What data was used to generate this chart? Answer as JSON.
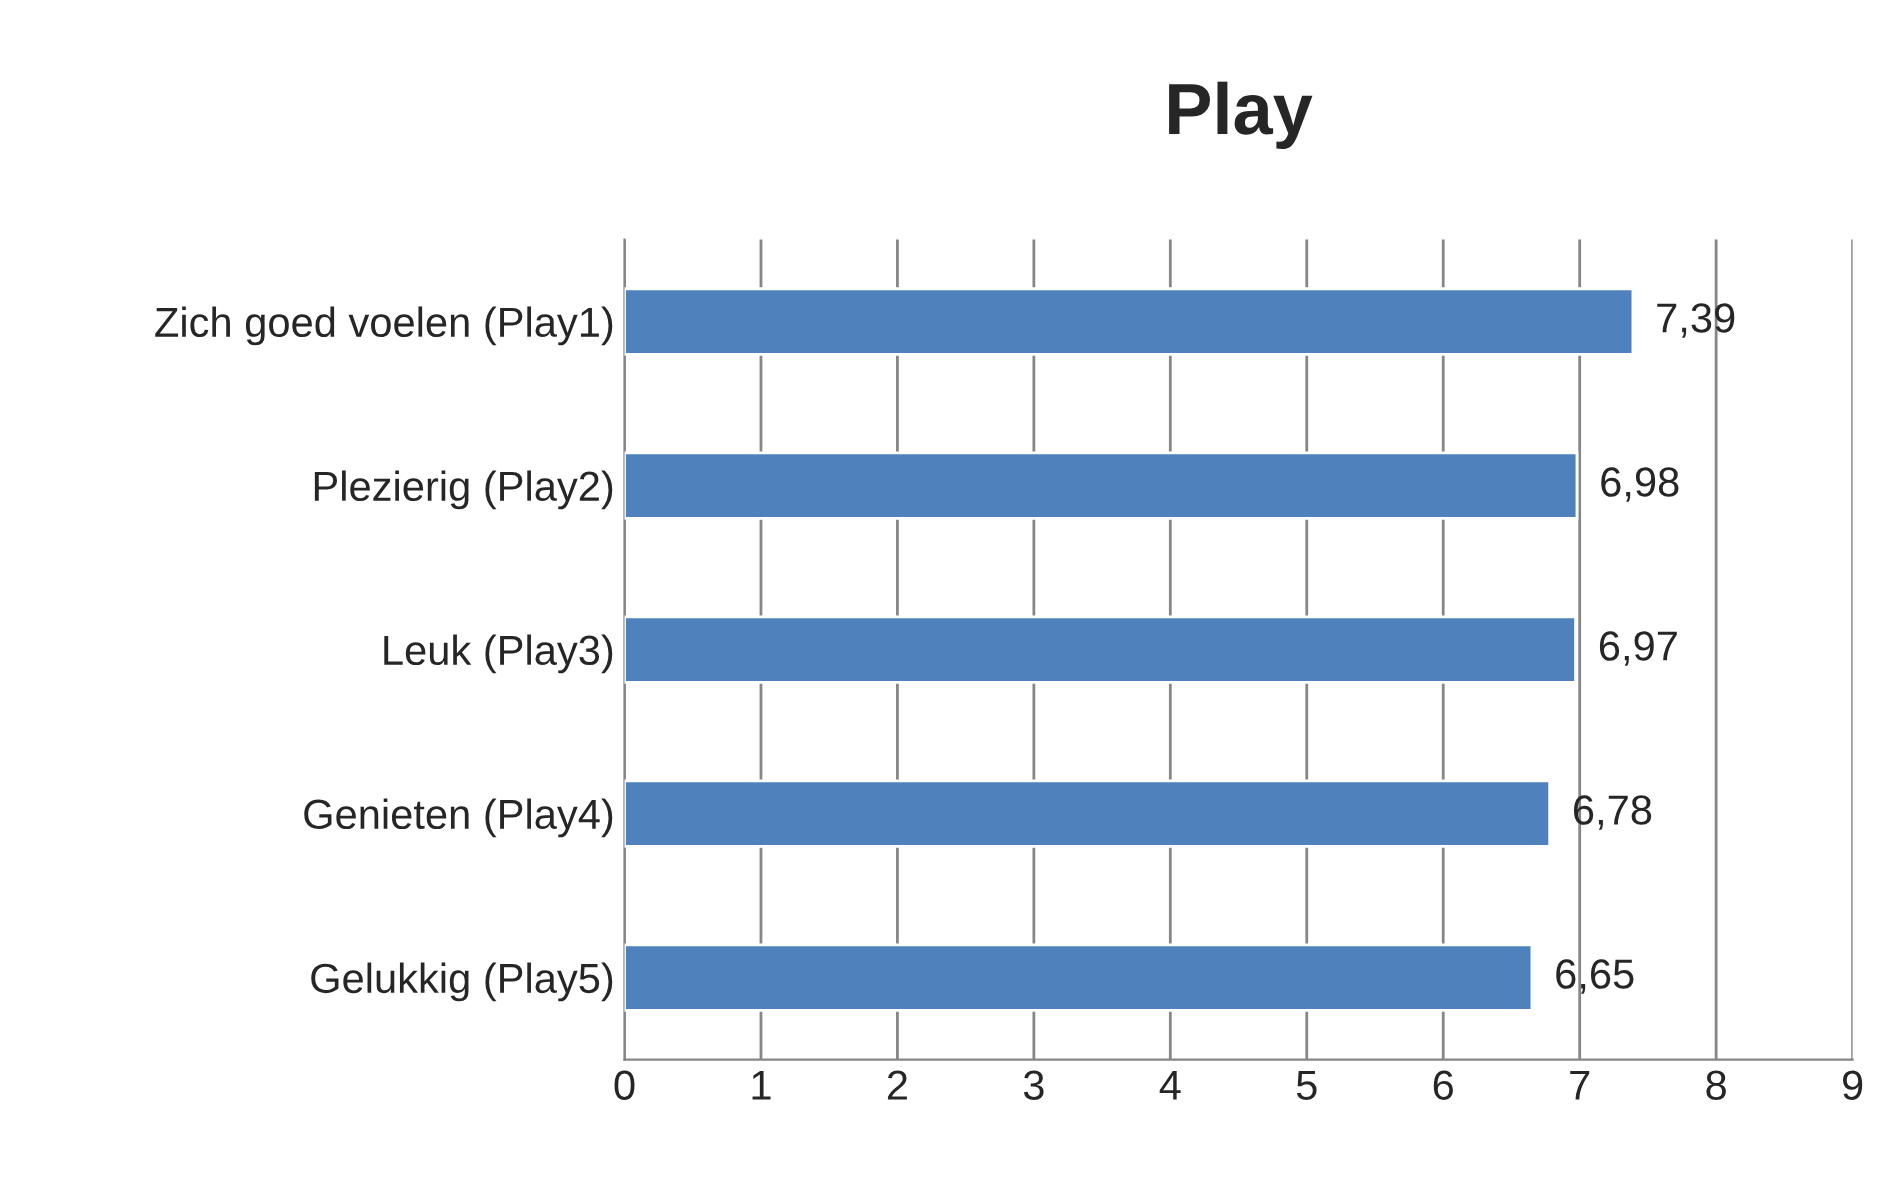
{
  "chart_data": {
    "type": "bar",
    "orientation": "horizontal",
    "title": "Play",
    "categories": [
      "Zich goed voelen (Play1)",
      "Plezierig (Play2)",
      "Leuk (Play3)",
      "Genieten (Play4)",
      "Gelukkig (Play5)"
    ],
    "values": [
      7.39,
      6.98,
      6.97,
      6.78,
      6.65
    ],
    "value_labels": [
      "7,39",
      "6,98",
      "6,97",
      "6,78",
      "6,65"
    ],
    "color": "#4f81bd",
    "xlim": [
      0,
      9
    ],
    "xticks": [
      0,
      1,
      2,
      3,
      4,
      5,
      6,
      7,
      8,
      9
    ],
    "grid": "x",
    "legend": false
  }
}
